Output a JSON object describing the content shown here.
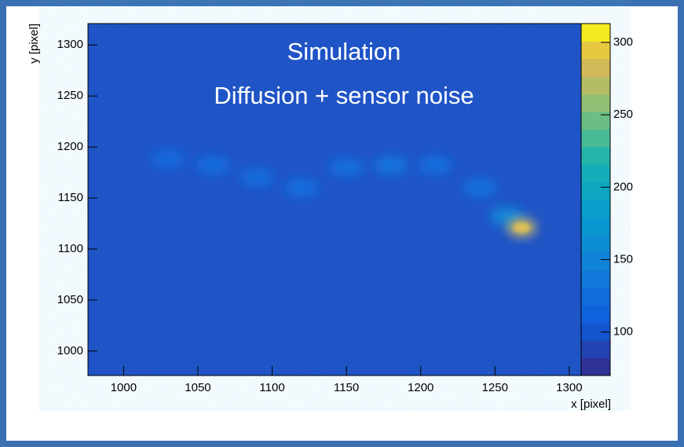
{
  "chart_data": {
    "type": "heatmap",
    "annotations": [
      "Simulation",
      "Diffusion + sensor noise"
    ],
    "x_label": "x [pixel]",
    "y_label": "y [pixel]",
    "xlim": [
      976,
      1308
    ],
    "xticks": [
      1000,
      1050,
      1100,
      1150,
      1200,
      1250,
      1300
    ],
    "ylim": [
      976,
      1321
    ],
    "yticks": [
      1000,
      1050,
      1100,
      1150,
      1200,
      1250,
      1300
    ],
    "zlim": [
      70,
      313
    ],
    "zticks": [
      100,
      150,
      200,
      250,
      300
    ],
    "background_value": 95,
    "x": [
      1030,
      1060,
      1090,
      1120,
      1150,
      1180,
      1210,
      1240,
      1258,
      1268
    ],
    "y": [
      1188,
      1182,
      1170,
      1160,
      1180,
      1182,
      1182,
      1160,
      1132,
      1121
    ],
    "values": [
      115,
      117,
      119,
      119,
      121,
      126,
      120,
      124,
      150,
      290
    ]
  }
}
